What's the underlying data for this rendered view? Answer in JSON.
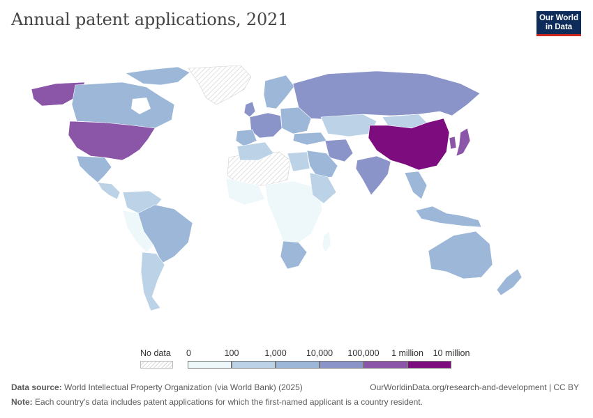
{
  "title": "Annual patent applications, 2021",
  "logo": {
    "line1": "Our World",
    "line2": "in Data"
  },
  "legend": {
    "no_data_label": "No data",
    "bins": [
      {
        "label": "0",
        "color": "#eef7f9"
      },
      {
        "label": "100",
        "color": "#bcd2e6"
      },
      {
        "label": "1,000",
        "color": "#9cb7d7"
      },
      {
        "label": "10,000",
        "color": "#8a94c8"
      },
      {
        "label": "100,000",
        "color": "#8b56a8"
      },
      {
        "label": "1 million",
        "color": "#7d0c7f"
      },
      {
        "label": "10 million",
        "color": ""
      }
    ]
  },
  "footer": {
    "source_label": "Data source:",
    "source_text": "World Intellectual Property Organization (via World Bank) (2025)",
    "url": "OurWorldinData.org/research-and-development | CC BY",
    "note_label": "Note:",
    "note_text": "Each country's data includes patent applications for which the first-named applicant is a country resident."
  },
  "chart_data": {
    "type": "choropleth",
    "metric": "Annual patent applications",
    "year": 2021,
    "bins": [
      "0",
      "100",
      "1,000",
      "10,000",
      "100,000",
      "1 million",
      "10 million"
    ],
    "regions": [
      {
        "region": "China",
        "bin": "1 million – 10 million"
      },
      {
        "region": "United States",
        "bin": "100,000 – 1 million"
      },
      {
        "region": "Japan",
        "bin": "100,000 – 1 million"
      },
      {
        "region": "South Korea",
        "bin": "100,000 – 1 million"
      },
      {
        "region": "Alaska (US)",
        "bin": "100,000 – 1 million"
      },
      {
        "region": "Russia",
        "bin": "10,000 – 100,000"
      },
      {
        "region": "India",
        "bin": "10,000 – 100,000"
      },
      {
        "region": "Germany",
        "bin": "10,000 – 100,000"
      },
      {
        "region": "United Kingdom",
        "bin": "10,000 – 100,000"
      },
      {
        "region": "France",
        "bin": "10,000 – 100,000"
      },
      {
        "region": "Iran",
        "bin": "10,000 – 100,000"
      },
      {
        "region": "Turkey",
        "bin": "1,000 – 10,000"
      },
      {
        "region": "Canada",
        "bin": "1,000 – 10,000"
      },
      {
        "region": "Brazil",
        "bin": "1,000 – 10,000"
      },
      {
        "region": "Mexico",
        "bin": "1,000 – 10,000"
      },
      {
        "region": "Australia",
        "bin": "1,000 – 10,000"
      },
      {
        "region": "Saudi Arabia",
        "bin": "1,000 – 10,000"
      },
      {
        "region": "Egypt",
        "bin": "100 – 1,000"
      },
      {
        "region": "Kazakhstan",
        "bin": "100 – 1,000"
      },
      {
        "region": "Algeria",
        "bin": "100 – 1,000"
      },
      {
        "region": "Argentina",
        "bin": "100 – 1,000"
      },
      {
        "region": "South Africa",
        "bin": "100 – 1,000"
      },
      {
        "region": "Mongolia",
        "bin": "100 – 1,000"
      },
      {
        "region": "Central Africa",
        "bin": "0 – 100"
      },
      {
        "region": "Bolivia",
        "bin": "0 – 100"
      },
      {
        "region": "Sahara / Libya",
        "bin": "No data"
      },
      {
        "region": "Greenland",
        "bin": "No data"
      }
    ]
  }
}
